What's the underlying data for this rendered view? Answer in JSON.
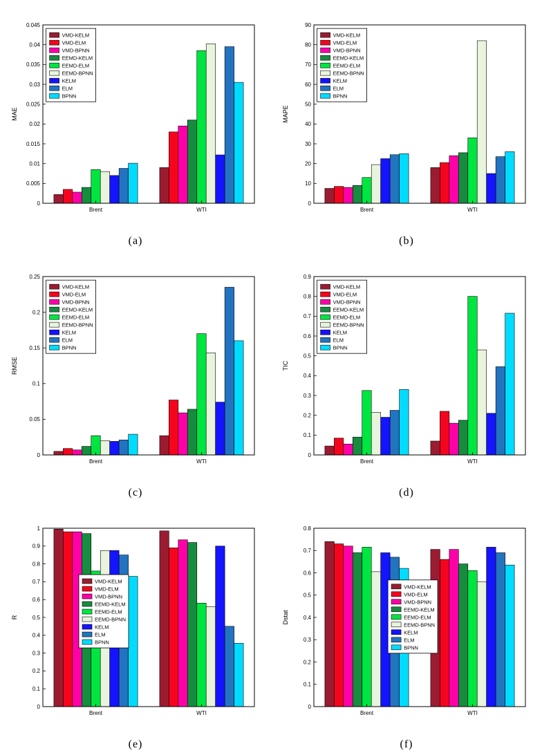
{
  "figure": {
    "background": "#ffffff"
  },
  "chart_data": {
    "type": "bar",
    "title": "",
    "xlabel": "",
    "categories": [
      "Brent",
      "WTI"
    ],
    "legend_entries": [
      "VMD-KELM",
      "VMD-ELM",
      "VMD-BPNN",
      "EEMD-KELM",
      "EEMD-ELM",
      "EEMD-BPNN",
      "KELM",
      "ELM",
      "BPNN"
    ],
    "models": [
      {
        "name": "VMD-KELM",
        "color": "#9b1c31"
      },
      {
        "name": "VMD-ELM",
        "color": "#f5051d"
      },
      {
        "name": "VMD-BPNN",
        "color": "#ff00a8"
      },
      {
        "name": "EEMD-KELM",
        "color": "#168c3f"
      },
      {
        "name": "EEMD-ELM",
        "color": "#00e640"
      },
      {
        "name": "EEMD-BPNN",
        "color": "#e8f5dc"
      },
      {
        "name": "KELM",
        "color": "#1414ff"
      },
      {
        "name": "ELM",
        "color": "#2374c0"
      },
      {
        "name": "BPNN",
        "color": "#00dcff"
      }
    ],
    "panels": [
      {
        "caption": "(a)",
        "ylabel": "MAE",
        "ylim": [
          0,
          0.045
        ],
        "ytick": 0.005,
        "legend": {
          "x": 0.015,
          "y": 0.02
        },
        "values": [
          [
            0.0022,
            0.009
          ],
          [
            0.0035,
            0.018
          ],
          [
            0.0028,
            0.0195
          ],
          [
            0.004,
            0.021
          ],
          [
            0.0085,
            0.0385
          ],
          [
            0.008,
            0.0402
          ],
          [
            0.007,
            0.0122
          ],
          [
            0.0088,
            0.0395
          ],
          [
            0.0101,
            0.0305
          ]
        ]
      },
      {
        "caption": "(b)",
        "ylabel": "MAPE",
        "ylim": [
          0,
          90
        ],
        "ytick": 10,
        "legend": {
          "x": 0.015,
          "y": 0.02
        },
        "values": [
          [
            7.5,
            18
          ],
          [
            8.5,
            20.5
          ],
          [
            8,
            24
          ],
          [
            9,
            25.5
          ],
          [
            13,
            33
          ],
          [
            19.5,
            82
          ],
          [
            22.5,
            15
          ],
          [
            24.5,
            23.5
          ],
          [
            25,
            26
          ]
        ]
      },
      {
        "caption": "(c)",
        "ylabel": "RMSE",
        "ylim": [
          0,
          0.25
        ],
        "ytick": 0.05,
        "legend": {
          "x": 0.015,
          "y": 0.02
        },
        "values": [
          [
            0.005,
            0.027
          ],
          [
            0.009,
            0.077
          ],
          [
            0.007,
            0.059
          ],
          [
            0.012,
            0.064
          ],
          [
            0.027,
            0.17
          ],
          [
            0.02,
            0.143
          ],
          [
            0.019,
            0.074
          ],
          [
            0.021,
            0.235
          ],
          [
            0.029,
            0.16
          ]
        ]
      },
      {
        "caption": "(d)",
        "ylabel": "TIC",
        "ylim": [
          0,
          0.9
        ],
        "ytick": 0.1,
        "legend": {
          "x": 0.015,
          "y": 0.02
        },
        "values": [
          [
            0.045,
            0.07
          ],
          [
            0.085,
            0.22
          ],
          [
            0.055,
            0.16
          ],
          [
            0.09,
            0.175
          ],
          [
            0.325,
            0.8
          ],
          [
            0.215,
            0.53
          ],
          [
            0.19,
            0.21
          ],
          [
            0.225,
            0.445
          ],
          [
            0.33,
            0.715
          ]
        ]
      },
      {
        "caption": "(e)",
        "ylabel": "R",
        "ylim": [
          0,
          1
        ],
        "ytick": 0.1,
        "legend": {
          "x": 0.17,
          "y": 0.26
        },
        "values": [
          [
            0.995,
            0.985
          ],
          [
            0.98,
            0.89
          ],
          [
            0.98,
            0.935
          ],
          [
            0.97,
            0.92
          ],
          [
            0.76,
            0.58
          ],
          [
            0.875,
            0.56
          ],
          [
            0.875,
            0.9
          ],
          [
            0.85,
            0.45
          ],
          [
            0.73,
            0.355
          ]
        ]
      },
      {
        "caption": "(f)",
        "ylabel": "Dstat",
        "ylim": [
          0,
          0.8
        ],
        "ytick": 0.1,
        "legend": {
          "x": 0.35,
          "y": 0.29
        },
        "values": [
          [
            0.74,
            0.705
          ],
          [
            0.73,
            0.66
          ],
          [
            0.72,
            0.705
          ],
          [
            0.69,
            0.64
          ],
          [
            0.715,
            0.61
          ],
          [
            0.605,
            0.56
          ],
          [
            0.69,
            0.715
          ],
          [
            0.67,
            0.69
          ],
          [
            0.62,
            0.635
          ]
        ]
      }
    ]
  }
}
